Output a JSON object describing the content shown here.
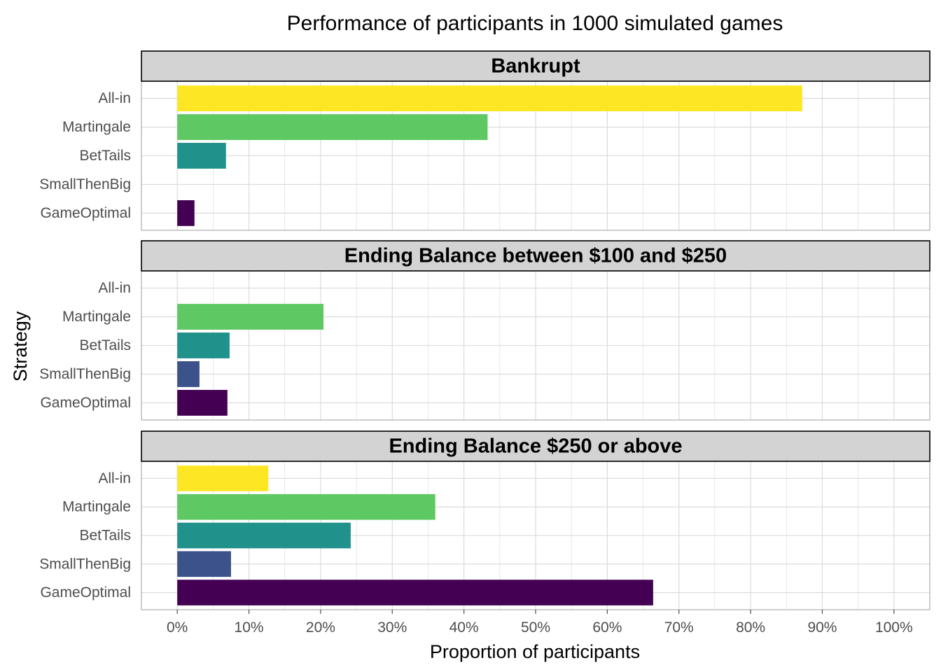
{
  "chart_data": {
    "type": "bar",
    "orientation": "horizontal",
    "title": "Performance of participants in 1000 simulated games",
    "xlabel": "Proportion of participants",
    "ylabel": "Strategy",
    "xlim": [
      -0.05,
      1.05
    ],
    "x_ticks": [
      0,
      0.1,
      0.2,
      0.3,
      0.4,
      0.5,
      0.6,
      0.7,
      0.8,
      0.9,
      1.0
    ],
    "x_tick_labels": [
      "0%",
      "10%",
      "20%",
      "30%",
      "40%",
      "50%",
      "60%",
      "70%",
      "80%",
      "90%",
      "100%"
    ],
    "grid": true,
    "legend": "none",
    "categories": [
      "All-in",
      "Martingale",
      "BetTails",
      "SmallThenBig",
      "GameOptimal"
    ],
    "category_colors": {
      "All-in": "#FDE725",
      "Martingale": "#5EC962",
      "BetTails": "#21918C",
      "SmallThenBig": "#3B528B",
      "GameOptimal": "#440154"
    },
    "facets": [
      {
        "label": "Bankrupt",
        "values": {
          "All-in": 0.872,
          "Martingale": 0.433,
          "BetTails": 0.068,
          "SmallThenBig": 0.0,
          "GameOptimal": 0.024
        }
      },
      {
        "label": "Ending Balance between $100 and $250",
        "values": {
          "All-in": 0.0,
          "Martingale": 0.204,
          "BetTails": 0.073,
          "SmallThenBig": 0.031,
          "GameOptimal": 0.07
        }
      },
      {
        "label": "Ending Balance $250 or above",
        "values": {
          "All-in": 0.127,
          "Martingale": 0.36,
          "BetTails": 0.242,
          "SmallThenBig": 0.075,
          "GameOptimal": 0.664
        }
      }
    ]
  }
}
